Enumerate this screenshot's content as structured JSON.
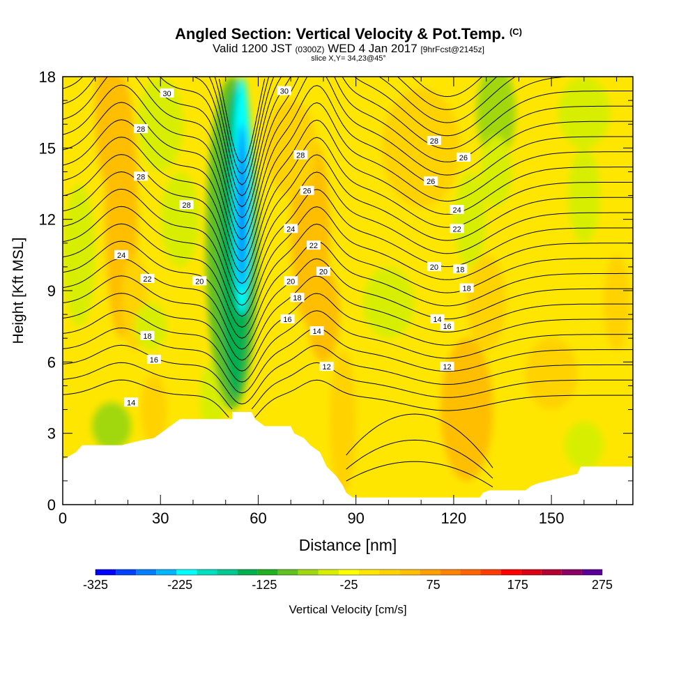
{
  "header": {
    "title": "Angled Section: Vertical Velocity & Pot.Temp.",
    "copyright": "(C)",
    "valid_prefix": "Valid 1200 JST",
    "valid_utc": "(0300Z)",
    "valid_date": "WED 4 Jan 2017",
    "forecast": "[9hrFcst@2145z]",
    "slice": "slice X,Y= 34,23@45°"
  },
  "chart_data": {
    "type": "heatmap",
    "xlabel": "Distance [nm]",
    "ylabel": "Height [Kft MSL]",
    "xlim": [
      0,
      175
    ],
    "ylim": [
      0,
      18
    ],
    "x_ticks": [
      0,
      30,
      60,
      90,
      120,
      150
    ],
    "y_ticks": [
      0,
      3,
      6,
      9,
      12,
      15,
      18
    ],
    "grid": false,
    "colorbar": {
      "label": "Vertical Velocity [cm/s]",
      "tick_labels": [
        -325,
        -225,
        -125,
        -25,
        75,
        175,
        275
      ],
      "min": -325,
      "max": 275,
      "step": 25,
      "colors": [
        "#0000ff",
        "#0040ff",
        "#0080ff",
        "#00b4ff",
        "#00ffff",
        "#00e0c0",
        "#00c890",
        "#00b050",
        "#20b020",
        "#60c020",
        "#a0d810",
        "#d8ee00",
        "#ffff00",
        "#ffe600",
        "#ffd200",
        "#ffbe00",
        "#ffa000",
        "#ff8200",
        "#ff6400",
        "#ff3c00",
        "#ff0000",
        "#dc0014",
        "#b40032",
        "#8c0064",
        "#5a0096"
      ]
    },
    "terrain_height_kft": [
      [
        0,
        1.9
      ],
      [
        4,
        2.2
      ],
      [
        6,
        2.5
      ],
      [
        18,
        2.5
      ],
      [
        24,
        2.7
      ],
      [
        28,
        2.8
      ],
      [
        30,
        3.0
      ],
      [
        33,
        3.3
      ],
      [
        36,
        3.6
      ],
      [
        52,
        3.6
      ],
      [
        52,
        3.9
      ],
      [
        58,
        3.9
      ],
      [
        59,
        3.6
      ],
      [
        62,
        3.3
      ],
      [
        70,
        3.3
      ],
      [
        71,
        3.0
      ],
      [
        74,
        2.8
      ],
      [
        76,
        2.5
      ],
      [
        79,
        2.2
      ],
      [
        81,
        1.6
      ],
      [
        84,
        1.2
      ],
      [
        86,
        0.8
      ],
      [
        87,
        0.5
      ],
      [
        88,
        0.4
      ],
      [
        89,
        0.3
      ],
      [
        128,
        0.3
      ],
      [
        129,
        0.5
      ],
      [
        131,
        0.6
      ],
      [
        142,
        0.6
      ],
      [
        144,
        0.8
      ],
      [
        146,
        0.9
      ],
      [
        152,
        1.1
      ],
      [
        158,
        1.3
      ],
      [
        159,
        1.6
      ],
      [
        175,
        1.6
      ]
    ],
    "potential_temperature_contour_labels": [
      "30",
      "30",
      "28",
      "28",
      "28",
      "28",
      "28",
      "26",
      "26",
      "26",
      "24",
      "24",
      "24",
      "22",
      "22",
      "22",
      "20",
      "20",
      "20",
      "20",
      "18",
      "18",
      "18",
      "18",
      "16",
      "16",
      "16",
      "14",
      "14",
      "14",
      "12",
      "12"
    ],
    "vertical_velocity_features": [
      {
        "description": "strong downdraft core",
        "x_nm": 55,
        "top_kft": 18,
        "bottom_kft": 4,
        "min_cms": -275
      },
      {
        "description": "updraft band",
        "x_nm": 16,
        "top_kft": 18,
        "bottom_kft": 8,
        "max_cms": 75
      },
      {
        "description": "updraft band",
        "x_nm": 78,
        "top_kft": 16,
        "bottom_kft": 6,
        "max_cms": 75
      },
      {
        "description": "updraft region",
        "x_nm": 124,
        "top_kft": 6,
        "bottom_kft": 2,
        "max_cms": 75
      },
      {
        "description": "downdraft",
        "x_nm": 133,
        "top_kft": 18,
        "bottom_kft": 13,
        "min_cms": -100
      }
    ]
  }
}
